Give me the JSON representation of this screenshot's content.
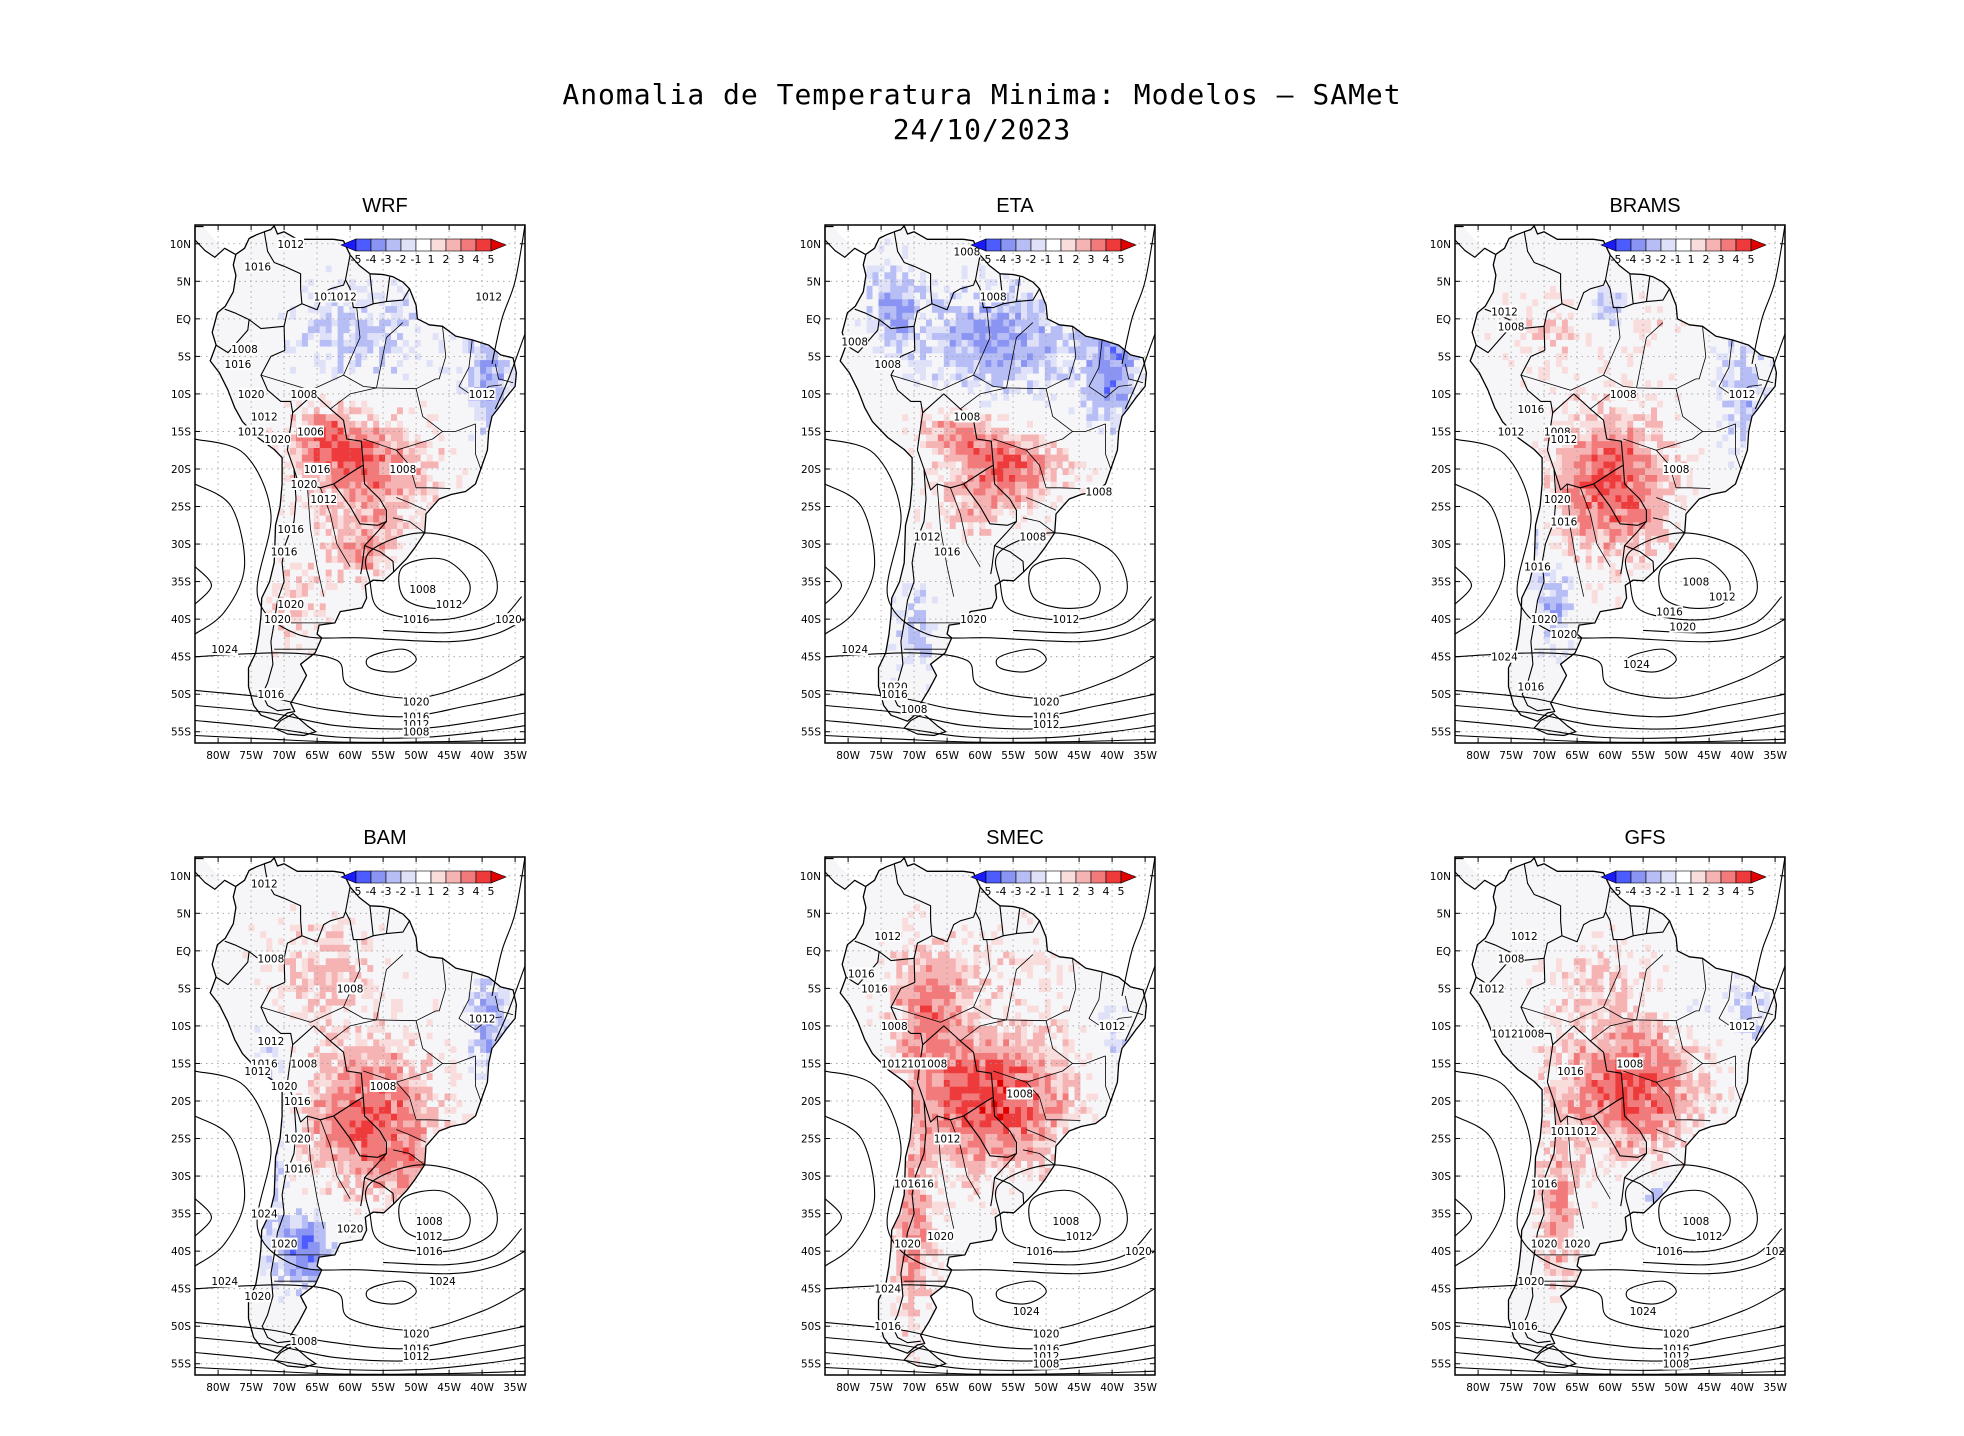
{
  "figure": {
    "title_line1": "Anomalia de Temperatura Minima: Modelos – SAMet",
    "title_line2": "24/10/2023"
  },
  "colorbar": {
    "labels": [
      "-5",
      "-4",
      "-3",
      "-2",
      "-1",
      "1",
      "2",
      "3",
      "4",
      "5"
    ],
    "colors": [
      "#1a1aff",
      "#4d5cff",
      "#8a94f2",
      "#b7bdf5",
      "#dfe1f9",
      "#ffffff",
      "#f9dcdc",
      "#f6b3b3",
      "#f27a7a",
      "#ee3a3a",
      "#e00000"
    ]
  },
  "axes": {
    "lon_ticks": [
      "80W",
      "75W",
      "70W",
      "65W",
      "60W",
      "55W",
      "50W",
      "45W",
      "40W",
      "35W"
    ],
    "lat_ticks": [
      "10N",
      "5N",
      "EQ",
      "5S",
      "10S",
      "15S",
      "20S",
      "25S",
      "30S",
      "35S",
      "40S",
      "45S",
      "50S",
      "55S"
    ]
  },
  "palette": {
    "warm": "#ee2020",
    "warm_light": "#f7b0b0",
    "cold": "#3344ee",
    "cold_light": "#b4baf4",
    "neutral": "#f6f6f8",
    "contour": "#000000"
  },
  "panels": [
    {
      "name": "WRF",
      "pressure_labels": [
        {
          "text": "1012",
          "lon": -69,
          "lat": 10
        },
        {
          "text": "1016",
          "lon": -74,
          "lat": 7
        },
        {
          "text": "101",
          "lon": -64,
          "lat": 3
        },
        {
          "text": "1012",
          "lon": -61,
          "lat": 3
        },
        {
          "text": "1012",
          "lon": -39,
          "lat": 3
        },
        {
          "text": "1008",
          "lon": -76,
          "lat": -4
        },
        {
          "text": "1016",
          "lon": -77,
          "lat": -6
        },
        {
          "text": "1020",
          "lon": -75,
          "lat": -10
        },
        {
          "text": "1008",
          "lon": -67,
          "lat": -10
        },
        {
          "text": "1012",
          "lon": -40,
          "lat": -10
        },
        {
          "text": "1012",
          "lon": -73,
          "lat": -13
        },
        {
          "text": "1012",
          "lon": -75,
          "lat": -15
        },
        {
          "text": "1006",
          "lon": -66,
          "lat": -15
        },
        {
          "text": "1020",
          "lon": -71,
          "lat": -16
        },
        {
          "text": "1016",
          "lon": -65,
          "lat": -20
        },
        {
          "text": "1008",
          "lon": -52,
          "lat": -20
        },
        {
          "text": "1020",
          "lon": -67,
          "lat": -22
        },
        {
          "text": "1012",
          "lon": -64,
          "lat": -24
        },
        {
          "text": "1016",
          "lon": -69,
          "lat": -28
        },
        {
          "text": "1016",
          "lon": -70,
          "lat": -31
        },
        {
          "text": "1008",
          "lon": -49,
          "lat": -36
        },
        {
          "text": "1012",
          "lon": -45,
          "lat": -38
        },
        {
          "text": "1020",
          "lon": -69,
          "lat": -38
        },
        {
          "text": "1016",
          "lon": -50,
          "lat": -40
        },
        {
          "text": "1020",
          "lon": -36,
          "lat": -40
        },
        {
          "text": "1020",
          "lon": -71,
          "lat": -40
        },
        {
          "text": "1024",
          "lon": -79,
          "lat": -44
        },
        {
          "text": "1016",
          "lon": -72,
          "lat": -50
        },
        {
          "text": "1020",
          "lon": -50,
          "lat": -51
        },
        {
          "text": "1016",
          "lon": -50,
          "lat": -53
        },
        {
          "text": "1012",
          "lon": -50,
          "lat": -54
        },
        {
          "text": "1008",
          "lon": -50,
          "lat": -55
        }
      ]
    },
    {
      "name": "ETA",
      "pressure_labels": [
        {
          "text": "1008",
          "lon": -62,
          "lat": 9
        },
        {
          "text": "1008",
          "lon": -58,
          "lat": 3
        },
        {
          "text": "1008",
          "lon": -79,
          "lat": -3
        },
        {
          "text": "1008",
          "lon": -74,
          "lat": -6
        },
        {
          "text": "1008",
          "lon": -62,
          "lat": -13
        },
        {
          "text": "1008",
          "lon": -42,
          "lat": -23
        },
        {
          "text": "1012",
          "lon": -68,
          "lat": -29
        },
        {
          "text": "1016",
          "lon": -65,
          "lat": -31
        },
        {
          "text": "1008",
          "lon": -52,
          "lat": -29
        },
        {
          "text": "1020",
          "lon": -61,
          "lat": -40
        },
        {
          "text": "1012",
          "lon": -47,
          "lat": -40
        },
        {
          "text": "1024",
          "lon": -79,
          "lat": -44
        },
        {
          "text": "1020",
          "lon": -73,
          "lat": -49
        },
        {
          "text": "1016",
          "lon": -73,
          "lat": -50
        },
        {
          "text": "1008",
          "lon": -70,
          "lat": -52
        },
        {
          "text": "1020",
          "lon": -50,
          "lat": -51
        },
        {
          "text": "1016",
          "lon": -50,
          "lat": -53
        },
        {
          "text": "1012",
          "lon": -50,
          "lat": -54
        }
      ]
    },
    {
      "name": "BRAMS",
      "pressure_labels": [
        {
          "text": "1012",
          "lon": -76,
          "lat": 1
        },
        {
          "text": "1008",
          "lon": -75,
          "lat": -1
        },
        {
          "text": "1008",
          "lon": -58,
          "lat": -10
        },
        {
          "text": "1012",
          "lon": -40,
          "lat": -10
        },
        {
          "text": "1016",
          "lon": -72,
          "lat": -12
        },
        {
          "text": "1012",
          "lon": -75,
          "lat": -15
        },
        {
          "text": "1008",
          "lon": -68,
          "lat": -15
        },
        {
          "text": "1012",
          "lon": -67,
          "lat": -16
        },
        {
          "text": "1008",
          "lon": -50,
          "lat": -20
        },
        {
          "text": "1020",
          "lon": -68,
          "lat": -24
        },
        {
          "text": "1016",
          "lon": -67,
          "lat": -27
        },
        {
          "text": "1016",
          "lon": -71,
          "lat": -33
        },
        {
          "text": "1008",
          "lon": -47,
          "lat": -35
        },
        {
          "text": "1012",
          "lon": -43,
          "lat": -37
        },
        {
          "text": "1016",
          "lon": -51,
          "lat": -39
        },
        {
          "text": "1020",
          "lon": -70,
          "lat": -40
        },
        {
          "text": "1020",
          "lon": -67,
          "lat": -42
        },
        {
          "text": "1020",
          "lon": -49,
          "lat": -41
        },
        {
          "text": "1024",
          "lon": -76,
          "lat": -45
        },
        {
          "text": "1016",
          "lon": -72,
          "lat": -49
        },
        {
          "text": "1024",
          "lon": -56,
          "lat": -46
        }
      ]
    },
    {
      "name": "BAM",
      "pressure_labels": [
        {
          "text": "1012",
          "lon": -73,
          "lat": 9
        },
        {
          "text": "1008",
          "lon": -72,
          "lat": -1
        },
        {
          "text": "1008",
          "lon": -60,
          "lat": -5
        },
        {
          "text": "1012",
          "lon": -40,
          "lat": -9
        },
        {
          "text": "1012",
          "lon": -72,
          "lat": -12
        },
        {
          "text": "1016",
          "lon": -73,
          "lat": -15
        },
        {
          "text": "1012",
          "lon": -74,
          "lat": -16
        },
        {
          "text": "1008",
          "lon": -67,
          "lat": -15
        },
        {
          "text": "1020",
          "lon": -70,
          "lat": -18
        },
        {
          "text": "1008",
          "lon": -55,
          "lat": -18
        },
        {
          "text": "1016",
          "lon": -68,
          "lat": -20
        },
        {
          "text": "1020",
          "lon": -68,
          "lat": -25
        },
        {
          "text": "1016",
          "lon": -68,
          "lat": -29
        },
        {
          "text": "1024",
          "lon": -73,
          "lat": -35
        },
        {
          "text": "1020",
          "lon": -60,
          "lat": -37
        },
        {
          "text": "1020",
          "lon": -70,
          "lat": -39
        },
        {
          "text": "1008",
          "lon": -48,
          "lat": -36
        },
        {
          "text": "1012",
          "lon": -48,
          "lat": -38
        },
        {
          "text": "1016",
          "lon": -48,
          "lat": -40
        },
        {
          "text": "1024",
          "lon": -79,
          "lat": -44
        },
        {
          "text": "1024",
          "lon": -46,
          "lat": -44
        },
        {
          "text": "1020",
          "lon": -74,
          "lat": -46
        },
        {
          "text": "1008",
          "lon": -67,
          "lat": -52
        },
        {
          "text": "1020",
          "lon": -50,
          "lat": -51
        },
        {
          "text": "1016",
          "lon": -50,
          "lat": -53
        },
        {
          "text": "1012",
          "lon": -50,
          "lat": -54
        }
      ]
    },
    {
      "name": "SMEC",
      "pressure_labels": [
        {
          "text": "1012",
          "lon": -74,
          "lat": 2
        },
        {
          "text": "1016",
          "lon": -78,
          "lat": -3
        },
        {
          "text": "1016",
          "lon": -76,
          "lat": -5
        },
        {
          "text": "1008",
          "lon": -73,
          "lat": -10
        },
        {
          "text": "1012",
          "lon": -40,
          "lat": -10
        },
        {
          "text": "1012",
          "lon": -73,
          "lat": -15
        },
        {
          "text": "1016",
          "lon": -69,
          "lat": -15
        },
        {
          "text": "1008",
          "lon": -67,
          "lat": -15
        },
        {
          "text": "1008",
          "lon": -54,
          "lat": -19
        },
        {
          "text": "1012",
          "lon": -65,
          "lat": -25
        },
        {
          "text": "1016",
          "lon": -71,
          "lat": -31
        },
        {
          "text": "16",
          "lon": -68,
          "lat": -31
        },
        {
          "text": "1008",
          "lon": -47,
          "lat": -36
        },
        {
          "text": "1012",
          "lon": -45,
          "lat": -38
        },
        {
          "text": "1020",
          "lon": -66,
          "lat": -38
        },
        {
          "text": "1020",
          "lon": -71,
          "lat": -39
        },
        {
          "text": "1016",
          "lon": -51,
          "lat": -40
        },
        {
          "text": "1020",
          "lon": -36,
          "lat": -40
        },
        {
          "text": "1024",
          "lon": -74,
          "lat": -45
        },
        {
          "text": "1024",
          "lon": -53,
          "lat": -48
        },
        {
          "text": "1016",
          "lon": -74,
          "lat": -50
        },
        {
          "text": "1020",
          "lon": -50,
          "lat": -51
        },
        {
          "text": "1016",
          "lon": -50,
          "lat": -53
        },
        {
          "text": "1012",
          "lon": -50,
          "lat": -54
        },
        {
          "text": "1008",
          "lon": -50,
          "lat": -55
        }
      ]
    },
    {
      "name": "GFS",
      "pressure_labels": [
        {
          "text": "1012",
          "lon": -73,
          "lat": 2
        },
        {
          "text": "1008",
          "lon": -75,
          "lat": -1
        },
        {
          "text": "1012",
          "lon": -78,
          "lat": -5
        },
        {
          "text": "1012",
          "lon": -76,
          "lat": -11
        },
        {
          "text": "1008",
          "lon": -72,
          "lat": -11
        },
        {
          "text": "1012",
          "lon": -40,
          "lat": -10
        },
        {
          "text": "1016",
          "lon": -66,
          "lat": -16
        },
        {
          "text": "1008",
          "lon": -57,
          "lat": -15
        },
        {
          "text": "1016",
          "lon": -67,
          "lat": -24
        },
        {
          "text": "1012",
          "lon": -64,
          "lat": -24
        },
        {
          "text": "1016",
          "lon": -70,
          "lat": -31
        },
        {
          "text": "1008",
          "lon": -47,
          "lat": -36
        },
        {
          "text": "1012",
          "lon": -45,
          "lat": -38
        },
        {
          "text": "1020",
          "lon": -70,
          "lat": -39
        },
        {
          "text": "1020",
          "lon": -65,
          "lat": -39
        },
        {
          "text": "1016",
          "lon": -51,
          "lat": -40
        },
        {
          "text": "102",
          "lon": -35,
          "lat": -40
        },
        {
          "text": "1020",
          "lon": -72,
          "lat": -44
        },
        {
          "text": "1024",
          "lon": -55,
          "lat": -48
        },
        {
          "text": "1016",
          "lon": -73,
          "lat": -50
        },
        {
          "text": "1020",
          "lon": -50,
          "lat": -51
        },
        {
          "text": "1016",
          "lon": -50,
          "lat": -53
        },
        {
          "text": "1012",
          "lon": -50,
          "lat": -54
        },
        {
          "text": "1008",
          "lon": -50,
          "lat": -55
        }
      ]
    }
  ]
}
